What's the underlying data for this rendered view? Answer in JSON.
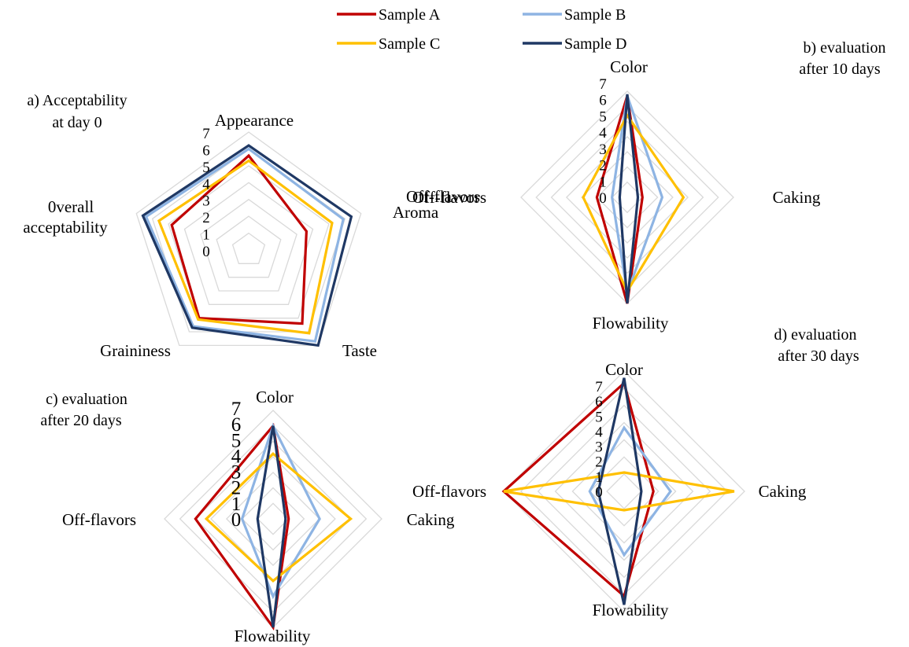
{
  "legend": {
    "placement": "top-center",
    "entries": [
      {
        "name": "Sample A",
        "color": "#C00000"
      },
      {
        "name": "Sample B",
        "color": "#8EB4E3"
      },
      {
        "name": "Sample C",
        "color": "#FFC000"
      },
      {
        "name": "Sample D",
        "color": "#1F3864"
      }
    ]
  },
  "chart_data": [
    {
      "type": "radar",
      "title_lines": [
        "a) Acceptability",
        "at day 0"
      ],
      "axes": [
        "Appearance",
        "Aroma",
        "Taste",
        "Graininess",
        "0verall acceptability"
      ],
      "axis_label_lines": [
        [
          "Appearance"
        ],
        [
          "Aroma"
        ],
        [
          "Taste"
        ],
        [
          "Graininess"
        ],
        [
          "0verall",
          "acceptability"
        ]
      ],
      "extra_labels": [
        {
          "text": "Off-flavors",
          "placement": "left-of-aroma"
        }
      ],
      "ticks": [
        "0",
        "1",
        "2",
        "3",
        "4",
        "5",
        "6",
        "7"
      ],
      "range": [
        0,
        7
      ],
      "grid": true,
      "series": [
        {
          "name": "Sample A",
          "values": [
            5.6,
            3.6,
            5.4,
            5.0,
            4.8
          ]
        },
        {
          "name": "Sample B",
          "values": [
            6.0,
            5.9,
            6.7,
            5.6,
            6.4
          ]
        },
        {
          "name": "Sample C",
          "values": [
            5.3,
            5.2,
            6.1,
            5.1,
            5.6
          ]
        },
        {
          "name": "Sample D",
          "values": [
            6.2,
            6.4,
            7.0,
            5.7,
            6.6
          ]
        }
      ]
    },
    {
      "type": "radar",
      "title_lines": [
        "b) evaluation",
        "after 10  days"
      ],
      "axes": [
        "Color",
        "Caking",
        "Flowability",
        "Off-flavors"
      ],
      "axis_label_lines": [
        [
          "Color"
        ],
        [
          "Caking"
        ],
        [
          "Flowability"
        ],
        [
          "Off-flavors"
        ]
      ],
      "ticks": [
        "0",
        "1",
        "2",
        "3",
        "4",
        "5",
        "6",
        "7"
      ],
      "range": [
        0,
        7
      ],
      "grid": true,
      "series": [
        {
          "name": "Sample A",
          "values": [
            6.7,
            1.0,
            7.0,
            2.0
          ]
        },
        {
          "name": "Sample B",
          "values": [
            6.7,
            2.3,
            6.3,
            1.0
          ]
        },
        {
          "name": "Sample C",
          "values": [
            5.4,
            3.7,
            6.2,
            2.9
          ]
        },
        {
          "name": "Sample D",
          "values": [
            6.8,
            0.7,
            7.0,
            0.5
          ]
        }
      ]
    },
    {
      "type": "radar",
      "title_lines": [
        "c) evaluation",
        "after 20  days"
      ],
      "axes": [
        "Color",
        "Caking",
        "Flowability",
        "Off-flavors"
      ],
      "axis_label_lines": [
        [
          "Color"
        ],
        [
          "Caking"
        ],
        [
          "Flowability"
        ],
        [
          "Off-flavors"
        ]
      ],
      "ticks": [
        "0",
        "1",
        "2",
        "3",
        "4",
        "5",
        "6",
        "7"
      ],
      "range": [
        0,
        7
      ],
      "grid": true,
      "series": [
        {
          "name": "Sample A",
          "values": [
            6.0,
            1.0,
            7.0,
            5.0
          ]
        },
        {
          "name": "Sample B",
          "values": [
            6.0,
            3.0,
            5.0,
            2.0
          ]
        },
        {
          "name": "Sample C",
          "values": [
            4.2,
            5.0,
            4.0,
            4.3
          ]
        },
        {
          "name": "Sample D",
          "values": [
            6.0,
            0.8,
            7.0,
            1.0
          ]
        }
      ]
    },
    {
      "type": "radar",
      "title_lines": [
        "d) evaluation",
        "after 30 days"
      ],
      "axes": [
        "Color",
        "Caking",
        "Flowability",
        "Off-flavors"
      ],
      "axis_label_lines": [
        [
          "Color"
        ],
        [
          "Caking"
        ],
        [
          "Flowability"
        ],
        [
          "Off-flavors"
        ]
      ],
      "ticks": [
        "0",
        "1",
        "2",
        "3",
        "4",
        "5",
        "6",
        "7"
      ],
      "range": [
        0,
        7
      ],
      "grid": true,
      "series": [
        {
          "name": "Sample A",
          "values": [
            6.3,
            1.7,
            6.1,
            7.0
          ]
        },
        {
          "name": "Sample B",
          "values": [
            3.7,
            2.7,
            3.7,
            2.0
          ]
        },
        {
          "name": "Sample C",
          "values": [
            1.1,
            6.4,
            1.1,
            7.0
          ]
        },
        {
          "name": "Sample D",
          "values": [
            6.6,
            1.0,
            6.6,
            1.5
          ]
        }
      ]
    }
  ]
}
